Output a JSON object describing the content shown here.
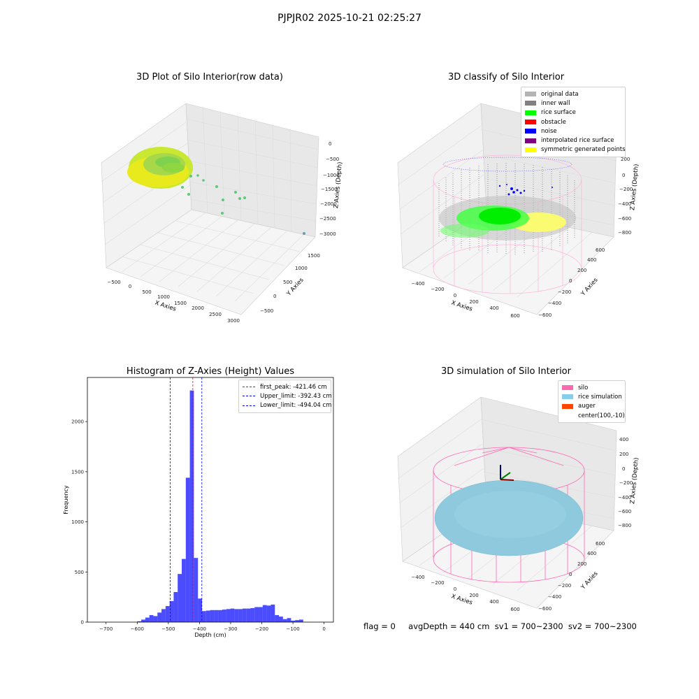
{
  "suptitle": "PJPJR02 2025-10-21 02:25:27",
  "panels": {
    "raw": {
      "title": "3D Plot of Silo Interior(row data)",
      "xlabel": "X Axies",
      "ylabel": "Y Axies",
      "zlabel": "Z Axies (Depth)",
      "xticks": [
        "−500",
        "0",
        "500",
        "1000",
        "1500",
        "2000",
        "2500",
        "3000"
      ],
      "yticks": [
        "−500",
        "0",
        "500",
        "1000",
        "1500"
      ],
      "zticks": [
        "0",
        "−500",
        "−1000",
        "−1500",
        "−2000",
        "−2500",
        "−3000"
      ]
    },
    "classify": {
      "title": "3D classify of Silo Interior",
      "xlabel": "X Axies",
      "ylabel": "Y Axies",
      "zlabel": "Z Axies (Depth)",
      "xticks": [
        "−400",
        "−200",
        "0",
        "200",
        "400",
        "600"
      ],
      "yticks": [
        "−600",
        "−400",
        "−200",
        "0",
        "200",
        "400",
        "600"
      ],
      "zticks": [
        "200",
        "0",
        "−200",
        "−400",
        "−600",
        "−800"
      ],
      "legend": [
        {
          "label": "original data",
          "color": "#b3b3b3"
        },
        {
          "label": "inner wall",
          "color": "#808080"
        },
        {
          "label": "rice surface",
          "color": "#00ff00"
        },
        {
          "label": "obstacle",
          "color": "#ff0000"
        },
        {
          "label": "noise",
          "color": "#0000ff"
        },
        {
          "label": "interpolated rice surface",
          "color": "#800080"
        },
        {
          "label": "symmetric generated points",
          "color": "#ffff00"
        }
      ]
    },
    "simulation": {
      "title": "3D simulation of Silo Interior",
      "xlabel": "X Axies",
      "ylabel": "Y Axies",
      "zlabel": "Z Axies (Depth)",
      "xticks": [
        "−400",
        "−200",
        "0",
        "200",
        "400",
        "600"
      ],
      "yticks": [
        "−600",
        "−400",
        "−200",
        "0",
        "200",
        "400",
        "600"
      ],
      "zticks": [
        "400",
        "200",
        "0",
        "−200",
        "−400",
        "−600",
        "−800"
      ],
      "legend": [
        {
          "label": "silo",
          "color": "#ff69b4"
        },
        {
          "label": "rice simulation",
          "color": "#87ceeb"
        },
        {
          "label": "auger",
          "color": "#ff4500"
        },
        {
          "label": "center(100,-10)",
          "color": ""
        }
      ]
    }
  },
  "chart_data": {
    "type": "bar",
    "title": "Histogram of Z-Axies (Height) Values",
    "xlabel": "Depth (cm)",
    "ylabel": "Frequency",
    "xlim": [
      -760,
      30
    ],
    "ylim": [
      0,
      2440
    ],
    "xticks": [
      -700,
      -600,
      -500,
      -400,
      -300,
      -200,
      -100,
      0
    ],
    "yticks": [
      0,
      500,
      1000,
      1500,
      2000
    ],
    "bin_edges_start": -600,
    "bin_width": 13,
    "values": [
      8,
      25,
      45,
      70,
      60,
      95,
      130,
      160,
      210,
      300,
      480,
      630,
      1440,
      2310,
      640,
      235,
      110,
      115,
      120,
      120,
      120,
      125,
      130,
      135,
      130,
      130,
      135,
      135,
      140,
      150,
      150,
      170,
      165,
      175,
      70,
      55,
      30,
      40,
      15,
      20,
      25
    ],
    "lines": [
      {
        "label": "first_peak: -421.46 cm",
        "x": -421.46,
        "color": "#ff0000"
      },
      {
        "label": "Upper_limit: -392.43 cm",
        "x": -392.43,
        "color": "#0000ff"
      },
      {
        "label": "Lower_limit: -494.04 cm",
        "x": -494.04,
        "color": "#0000ff"
      }
    ],
    "bar_color": "#0000ff",
    "legend_position": "top-right"
  },
  "footer": {
    "flag": "flag = 0",
    "stats": "avgDepth = 440 cm  sv1 = 700~2300  sv2 = 700~2300"
  }
}
